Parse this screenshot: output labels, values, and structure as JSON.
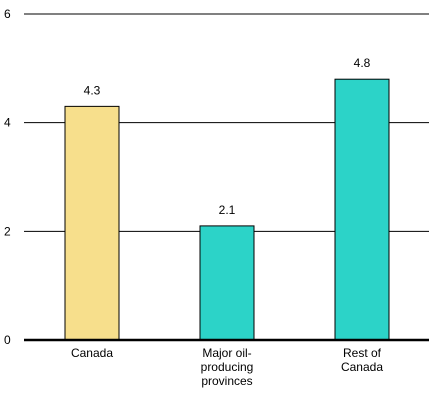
{
  "chart_data": {
    "type": "bar",
    "title": "",
    "xlabel": "",
    "ylabel": "",
    "categories": [
      [
        "Canada"
      ],
      [
        "Major oil-",
        "producing",
        "provinces"
      ],
      [
        "Rest of",
        "Canada"
      ]
    ],
    "values": [
      4.3,
      2.1,
      4.8
    ],
    "data_labels": [
      "4.3",
      "2.1",
      "4.8"
    ],
    "bar_colors": [
      "#f7df8c",
      "#2cd3c8",
      "#2cd3c8"
    ],
    "ylim": [
      0,
      6
    ],
    "yticks": [
      0,
      2,
      4,
      6
    ],
    "ytick_labels": [
      "0",
      "2",
      "4",
      "6"
    ],
    "grid": true
  }
}
